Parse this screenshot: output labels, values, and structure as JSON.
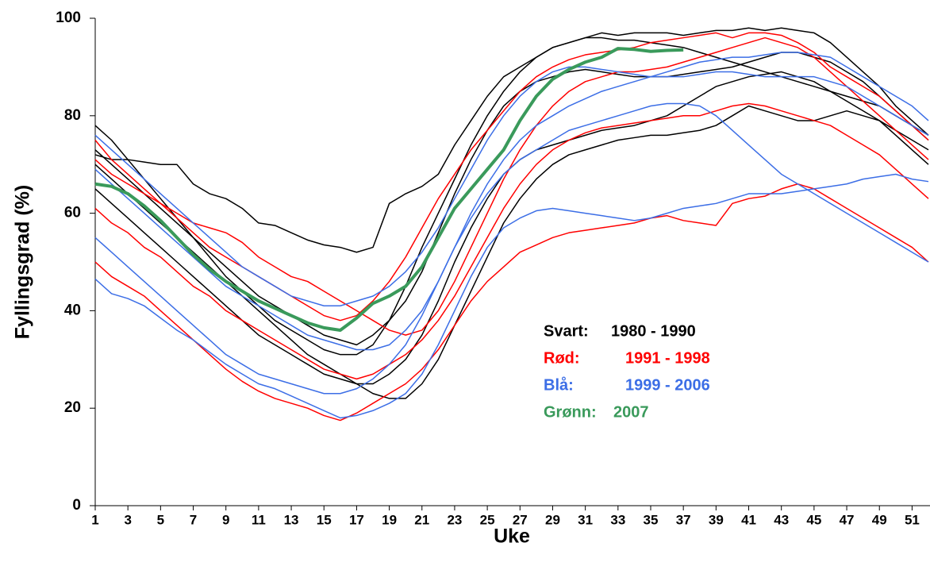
{
  "chart_data": {
    "type": "line",
    "x_label": "Uke",
    "y_label": "Fyllingsgrad (%)",
    "x": [
      1,
      2,
      3,
      4,
      5,
      6,
      7,
      8,
      9,
      10,
      11,
      12,
      13,
      14,
      15,
      16,
      17,
      18,
      19,
      20,
      21,
      22,
      23,
      24,
      25,
      26,
      27,
      28,
      29,
      30,
      31,
      32,
      33,
      34,
      35,
      36,
      37,
      38,
      39,
      40,
      41,
      42,
      43,
      44,
      45,
      46,
      47,
      48,
      49,
      50,
      51,
      52
    ],
    "xlim": [
      1,
      52
    ],
    "xticks": [
      1,
      3,
      5,
      7,
      9,
      11,
      13,
      15,
      17,
      19,
      21,
      23,
      25,
      27,
      29,
      31,
      33,
      35,
      37,
      39,
      41,
      43,
      45,
      47,
      49,
      51
    ],
    "ylim": [
      0,
      100
    ],
    "yticks": [
      0,
      20,
      40,
      60,
      80,
      100
    ],
    "series": [
      {
        "color": "#000000",
        "values": [
          72,
          71,
          71,
          70.5,
          70,
          70,
          66,
          64,
          63,
          61,
          58,
          57.5,
          56,
          54.5,
          53.5,
          53,
          52,
          53,
          62,
          64,
          65.5,
          68,
          74,
          79,
          84,
          88,
          90,
          92,
          94,
          95,
          96,
          97,
          96.5,
          97,
          97,
          97,
          96.5,
          97,
          97.5,
          97.5,
          98,
          97.5,
          98,
          97.5,
          97,
          95,
          92,
          89,
          86,
          82,
          79,
          76
        ]
      },
      {
        "color": "#000000",
        "values": [
          65,
          62,
          59,
          56,
          53,
          50,
          47,
          44,
          41,
          38,
          35,
          33,
          31,
          29,
          27,
          26,
          25,
          25,
          27,
          30,
          35,
          42,
          50,
          57,
          63,
          68,
          71,
          73,
          74,
          75,
          76,
          77,
          77.5,
          78,
          79,
          80,
          82,
          84,
          86,
          87,
          88,
          88.5,
          89,
          88,
          87,
          85,
          83,
          81,
          79,
          77,
          75,
          73
        ]
      },
      {
        "color": "#000000",
        "values": [
          78,
          75,
          71,
          67,
          63,
          59,
          55,
          51,
          47,
          44,
          41,
          38,
          36,
          34,
          32,
          31,
          31,
          33,
          38,
          45,
          53,
          60,
          67,
          74,
          80,
          85,
          89,
          92,
          94,
          95,
          96,
          96,
          95.5,
          95.5,
          95,
          94.5,
          94,
          93,
          92,
          91,
          90,
          89,
          88,
          87,
          86,
          85,
          84,
          83,
          82,
          80,
          78,
          76
        ]
      },
      {
        "color": "#000000",
        "values": [
          70,
          67,
          64,
          61,
          58,
          55,
          52,
          49,
          46,
          43,
          40,
          37,
          34,
          31,
          29,
          27,
          25,
          23,
          22,
          22,
          25,
          30,
          37,
          44,
          51,
          58,
          63,
          67,
          70,
          72,
          73,
          74,
          75,
          75.5,
          76,
          76,
          76.5,
          77,
          78,
          80,
          82,
          81,
          80,
          79,
          79,
          80,
          81,
          80,
          79,
          76,
          73,
          70
        ]
      },
      {
        "color": "#000000",
        "values": [
          73,
          70,
          67,
          64,
          61,
          58,
          55,
          52,
          49,
          46,
          43,
          41,
          39,
          37,
          35,
          34,
          33,
          35,
          38,
          42,
          48,
          56,
          64,
          71,
          77,
          82,
          85,
          87,
          88,
          89,
          89.5,
          89,
          88.5,
          88,
          88,
          88,
          88.5,
          89,
          89.5,
          90,
          91,
          92,
          93,
          93,
          92,
          91,
          89,
          87,
          84,
          81,
          78,
          75
        ]
      },
      {
        "color": "#ff0000",
        "values": [
          50,
          47,
          45,
          43,
          40,
          37,
          34,
          31,
          28,
          25.5,
          23.5,
          22,
          21,
          20,
          18.5,
          17.5,
          19,
          21,
          23,
          25,
          28,
          32,
          37,
          42,
          46,
          49,
          52,
          53.5,
          55,
          56,
          56.5,
          57,
          57.5,
          58,
          59,
          59.5,
          58.5,
          58,
          57.5,
          62,
          63,
          63.5,
          65,
          66,
          65,
          63,
          61,
          59,
          57,
          55,
          53,
          50
        ]
      },
      {
        "color": "#ff0000",
        "values": [
          75,
          71,
          68,
          65,
          62,
          59,
          56,
          53,
          51,
          49,
          47,
          45,
          43,
          41,
          39,
          38,
          39,
          42,
          46,
          51,
          57,
          63,
          68,
          73,
          77,
          81,
          85,
          88,
          90,
          91.5,
          92.5,
          93,
          93.5,
          94,
          95,
          95.5,
          96,
          96.5,
          97,
          96,
          97,
          97,
          96.5,
          95,
          93,
          90,
          88,
          86,
          84,
          81,
          78,
          75
        ]
      },
      {
        "color": "#ff0000",
        "values": [
          61,
          58,
          56,
          53,
          51,
          48,
          45,
          43,
          40,
          38,
          36,
          34,
          32,
          30,
          28,
          27,
          26,
          27,
          29,
          31,
          34,
          38,
          43,
          49,
          55,
          61,
          66,
          70,
          73,
          75,
          76.5,
          77.5,
          78,
          78.5,
          79,
          79.5,
          80,
          80,
          81,
          82,
          82.5,
          82,
          81,
          80,
          79,
          78,
          76,
          74,
          72,
          69,
          66,
          63
        ]
      },
      {
        "color": "#ff0000",
        "values": [
          71,
          68,
          66,
          64,
          62,
          60,
          58,
          57,
          56,
          54,
          51,
          49,
          47,
          46,
          44,
          42,
          40,
          38,
          36,
          35,
          36,
          40,
          46,
          53,
          60,
          67,
          73,
          78,
          82,
          85,
          87,
          88,
          89,
          89,
          89.5,
          90,
          91,
          92,
          93,
          94,
          95,
          96,
          95,
          94,
          92,
          89,
          86,
          83,
          80,
          77,
          74,
          71
        ]
      },
      {
        "color": "#3c6ee6",
        "values": [
          46.5,
          43.5,
          42.5,
          41,
          38.5,
          36,
          34,
          31.5,
          29,
          27,
          25,
          24,
          22.5,
          21,
          19.5,
          18,
          18.5,
          19.5,
          21,
          23,
          27,
          33,
          40,
          47,
          53,
          57,
          59,
          60.5,
          61,
          60.5,
          60,
          59.5,
          59,
          58.5,
          59,
          60,
          61,
          61.5,
          62,
          63,
          64,
          64,
          64,
          64.5,
          65,
          65.5,
          66,
          67,
          67.5,
          68,
          67,
          66.5
        ]
      },
      {
        "color": "#3c6ee6",
        "values": [
          55,
          52,
          49,
          46,
          43,
          40,
          37,
          34,
          31,
          29,
          27,
          26,
          25,
          24,
          23,
          23,
          24,
          26,
          29,
          33,
          39,
          46,
          53,
          59,
          64,
          68,
          71,
          73,
          75,
          77,
          78,
          79,
          80,
          81,
          82,
          82.5,
          82.5,
          82,
          80,
          77,
          74,
          71,
          68,
          66,
          64,
          62,
          60,
          58,
          56,
          54,
          52,
          50
        ]
      },
      {
        "color": "#3c6ee6",
        "values": [
          76,
          73,
          70,
          67,
          64,
          61,
          58,
          55,
          52,
          49,
          47,
          45,
          43,
          42,
          41,
          41,
          42,
          43,
          45,
          48,
          52,
          57,
          63,
          69,
          75,
          80,
          84,
          87,
          89,
          90,
          90,
          89.5,
          89,
          88.5,
          88,
          88,
          88,
          88.5,
          89,
          89,
          88.5,
          88,
          88,
          88,
          88,
          87,
          86,
          84,
          82,
          80,
          78,
          76
        ]
      },
      {
        "color": "#3c6ee6",
        "values": [
          69,
          66,
          63,
          60,
          57,
          54,
          51,
          48,
          45,
          43,
          41,
          39,
          37,
          35,
          34,
          33,
          32,
          32,
          33,
          36,
          40,
          46,
          53,
          60,
          66,
          71,
          75,
          78,
          80,
          82,
          83.5,
          85,
          86,
          87,
          88,
          89,
          90,
          91,
          91.5,
          92,
          92,
          92.5,
          93,
          93,
          92.5,
          92,
          90,
          88,
          86,
          84,
          82,
          79
        ]
      },
      {
        "color": "#3a9a5b",
        "width": 4,
        "values": [
          66,
          65.5,
          64,
          61.5,
          58.5,
          55,
          51.5,
          48.5,
          46,
          44,
          42,
          40.5,
          39,
          37.5,
          36.5,
          36,
          38.5,
          41.5,
          43,
          45,
          49,
          55,
          61,
          65,
          69,
          73,
          79,
          84,
          87.5,
          89.5,
          91,
          92,
          93.8,
          93.6,
          93.2,
          93.4,
          93.5,
          null,
          null,
          null,
          null,
          null,
          null,
          null,
          null,
          null,
          null,
          null,
          null,
          null,
          null,
          null
        ]
      }
    ],
    "annotations": [
      {
        "label": "Svart:",
        "text": "1980 - 1990",
        "color": "#000000"
      },
      {
        "label": "Rød:",
        "text": "1991 - 1998",
        "color": "#ff0000"
      },
      {
        "label": "Blå:",
        "text": "1999 - 2006",
        "color": "#3c6ee6"
      },
      {
        "label": "Grønn:",
        "text": "2007",
        "color": "#3a9a5b"
      }
    ]
  }
}
